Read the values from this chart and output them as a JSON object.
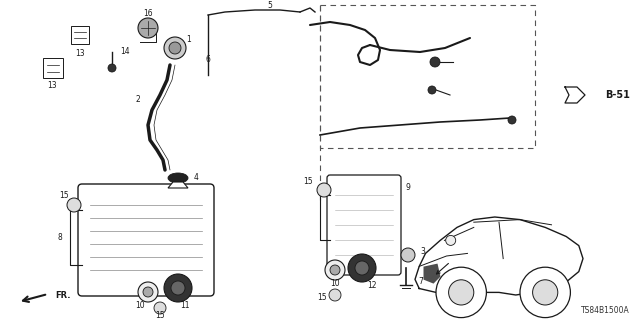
{
  "bg_color": "#ffffff",
  "diagram_code": "TS84B1500A",
  "figw": 6.4,
  "figh": 3.2,
  "dpi": 100
}
